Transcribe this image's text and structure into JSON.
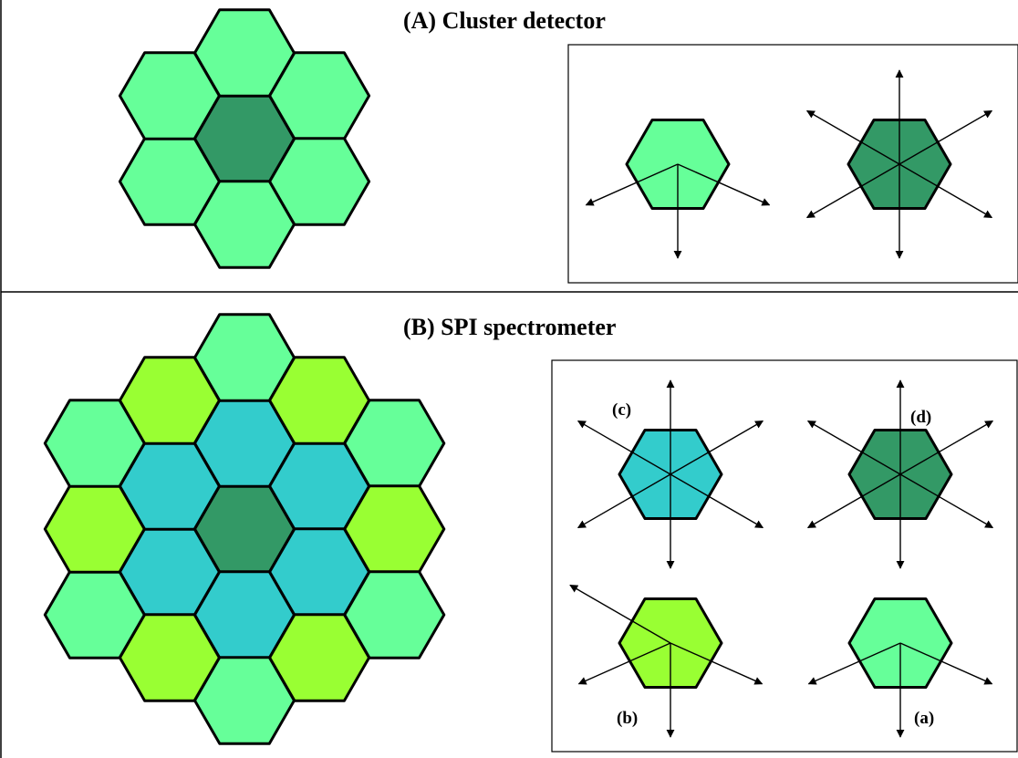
{
  "colors": {
    "light_green": "#66ff99",
    "dark_green": "#339966",
    "cyan": "#33cccc",
    "lime": "#99ff33"
  },
  "panel_a": {
    "title": "(A) Cluster detector",
    "cluster": {
      "center_color": "dark_green",
      "ring1_color": "light_green"
    },
    "legend": [
      {
        "fill": "light_green",
        "arrows": "three-way"
      },
      {
        "fill": "dark_green",
        "arrows": "six-way"
      }
    ]
  },
  "panel_b": {
    "title": "(B) SPI spectrometer",
    "cluster": {
      "center_color": "dark_green",
      "ring1_color": "cyan",
      "ring2_pattern": [
        "light_green",
        "lime"
      ]
    },
    "legend": [
      {
        "label": "(c)",
        "fill": "cyan",
        "arrows": "six-way"
      },
      {
        "label": "(d)",
        "fill": "dark_green",
        "arrows": "six-way"
      },
      {
        "label": "(b)",
        "fill": "lime",
        "arrows": "four-way"
      },
      {
        "label": "(a)",
        "fill": "light_green",
        "arrows": "three-way"
      }
    ]
  }
}
